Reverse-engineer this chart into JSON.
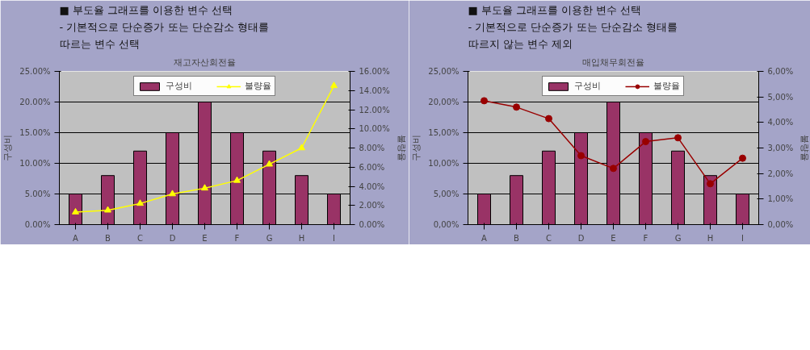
{
  "chart_data": [
    {
      "type": "bar",
      "title": "재고자산회전율",
      "annotations": [
        "■ 부도율 그래프를 이용한 변수 선택",
        "- 기본적으로 단순증가 또는 단순감소 형태를",
        "따르는 변수 선택"
      ],
      "categories": [
        "A",
        "B",
        "C",
        "D",
        "E",
        "F",
        "G",
        "H",
        "I"
      ],
      "ylabel": "구성비",
      "y2label": "불량율",
      "series": [
        {
          "name": "구성비",
          "color": "#993366",
          "values": [
            5,
            8,
            12,
            15,
            20,
            15,
            12,
            8,
            5
          ]
        },
        {
          "name": "불량율",
          "type": "line",
          "axis": "y2",
          "color": "#ffff00",
          "marker": "triangle",
          "values": [
            1.3,
            1.5,
            2.2,
            3.2,
            3.8,
            4.6,
            6.3,
            8.0,
            14.5
          ]
        }
      ],
      "ylim": [
        0,
        25
      ],
      "yticks": [
        {
          "value": 0,
          "label": "0.00%"
        },
        {
          "value": 5,
          "label": "5.00%"
        },
        {
          "value": 10,
          "label": "10.00%"
        },
        {
          "value": 15,
          "label": "15.00%"
        },
        {
          "value": 20,
          "label": "20.00%"
        },
        {
          "value": 25,
          "label": "25.00%"
        }
      ],
      "legend": "top",
      "y2lim": [
        0,
        16
      ],
      "y2ticks": [
        {
          "value": 0,
          "label": "0.00%"
        },
        {
          "value": 2,
          "label": "2.00%"
        },
        {
          "value": 4,
          "label": "4.00%"
        },
        {
          "value": 6,
          "label": "6.00%"
        },
        {
          "value": 8,
          "label": "8.00%"
        },
        {
          "value": 10,
          "label": "10.00%"
        },
        {
          "value": 12,
          "label": "12.00%"
        },
        {
          "value": 14,
          "label": "14.00%"
        },
        {
          "value": 16,
          "label": "16.00%"
        }
      ],
      "grid": "y"
    },
    {
      "type": "bar",
      "title": "매입채무회전율",
      "annotations": [
        "■ 부도율 그래프를 이용한 변수 선택",
        "- 기본적으로 단순증가 또는 단순감소 형태를",
        "따르지 않는 변수 제외"
      ],
      "categories": [
        "A",
        "B",
        "C",
        "D",
        "E",
        "F",
        "G",
        "H",
        "I"
      ],
      "ylabel": "구성비",
      "y2label": "불량율",
      "series": [
        {
          "name": "구성비",
          "color": "#993366",
          "values": [
            5,
            8,
            12,
            15,
            20,
            15,
            12,
            8,
            5
          ]
        },
        {
          "name": "불량율",
          "type": "line",
          "axis": "y2",
          "color": "#990000",
          "marker": "circle",
          "values": [
            4.85,
            4.6,
            4.15,
            2.7,
            2.2,
            3.25,
            3.4,
            1.6,
            2.6
          ]
        }
      ],
      "ylim": [
        0,
        25
      ],
      "yticks": [
        {
          "value": 0,
          "label": "0,00%"
        },
        {
          "value": 5,
          "label": "5,00%"
        },
        {
          "value": 10,
          "label": "10,00%"
        },
        {
          "value": 15,
          "label": "15,00%"
        },
        {
          "value": 20,
          "label": "20,00%"
        },
        {
          "value": 25,
          "label": "25,00%"
        }
      ],
      "legend": "top",
      "y2lim": [
        0,
        6
      ],
      "y2ticks": [
        {
          "value": 0,
          "label": "0,00%"
        },
        {
          "value": 1,
          "label": "1,00%"
        },
        {
          "value": 2,
          "label": "2,00%"
        },
        {
          "value": 3,
          "label": "3,00%"
        },
        {
          "value": 4,
          "label": "4,00%"
        },
        {
          "value": 5,
          "label": "5,00%"
        },
        {
          "value": 6,
          "label": "6,00%"
        }
      ],
      "grid": "y"
    }
  ]
}
